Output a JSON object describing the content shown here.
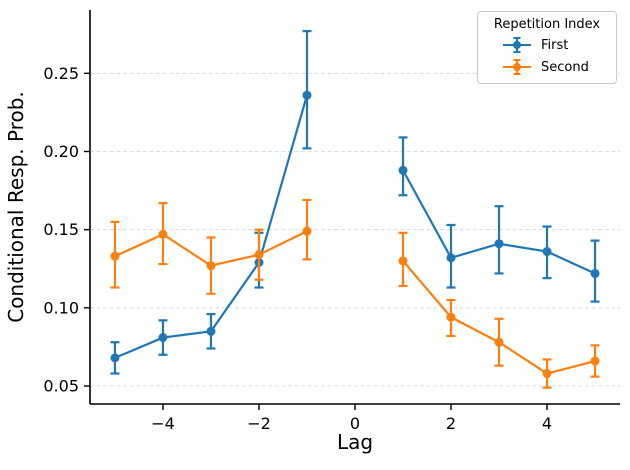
{
  "chart_data": {
    "type": "line",
    "title": "",
    "xlabel": "Lag",
    "ylabel": "Conditional Resp. Prob.",
    "legend": {
      "title": "Repetition Index",
      "position": "upper right"
    },
    "x": [
      -5,
      -4,
      -3,
      -2,
      -1,
      1,
      2,
      3,
      4,
      5
    ],
    "series": [
      {
        "name": "First",
        "color": "#1f77b4",
        "values": [
          0.068,
          0.081,
          0.085,
          0.129,
          0.236,
          0.188,
          0.132,
          0.141,
          0.136,
          0.122
        ],
        "err_low": [
          0.058,
          0.07,
          0.074,
          0.113,
          0.202,
          0.172,
          0.113,
          0.122,
          0.119,
          0.104
        ],
        "err_high": [
          0.078,
          0.092,
          0.096,
          0.148,
          0.277,
          0.209,
          0.153,
          0.165,
          0.152,
          0.143
        ]
      },
      {
        "name": "Second",
        "color": "#ff7f0e",
        "values": [
          0.133,
          0.147,
          0.127,
          0.134,
          0.149,
          0.13,
          0.094,
          0.078,
          0.058,
          0.066
        ],
        "err_low": [
          0.113,
          0.128,
          0.109,
          0.118,
          0.131,
          0.114,
          0.082,
          0.063,
          0.049,
          0.056
        ],
        "err_high": [
          0.155,
          0.167,
          0.145,
          0.15,
          0.169,
          0.148,
          0.105,
          0.093,
          0.067,
          0.076
        ]
      }
    ],
    "xticks": [
      -4,
      -2,
      0,
      2,
      4
    ],
    "xticklabels": [
      "−4",
      "−2",
      "0",
      "2",
      "4"
    ],
    "yticks": [
      0.05,
      0.1,
      0.15,
      0.2,
      0.25
    ],
    "yticklabels": [
      "0.05",
      "0.10",
      "0.15",
      "0.20",
      "0.25"
    ],
    "xlim": [
      -5.52,
      5.52
    ],
    "ylim": [
      0.0385,
      0.2905
    ],
    "grid": {
      "axis": "y",
      "style": "dashed",
      "color": "#dcdcdc"
    },
    "line_gap_between": [
      -1,
      1
    ],
    "marker": "circle",
    "error_caps": true
  }
}
